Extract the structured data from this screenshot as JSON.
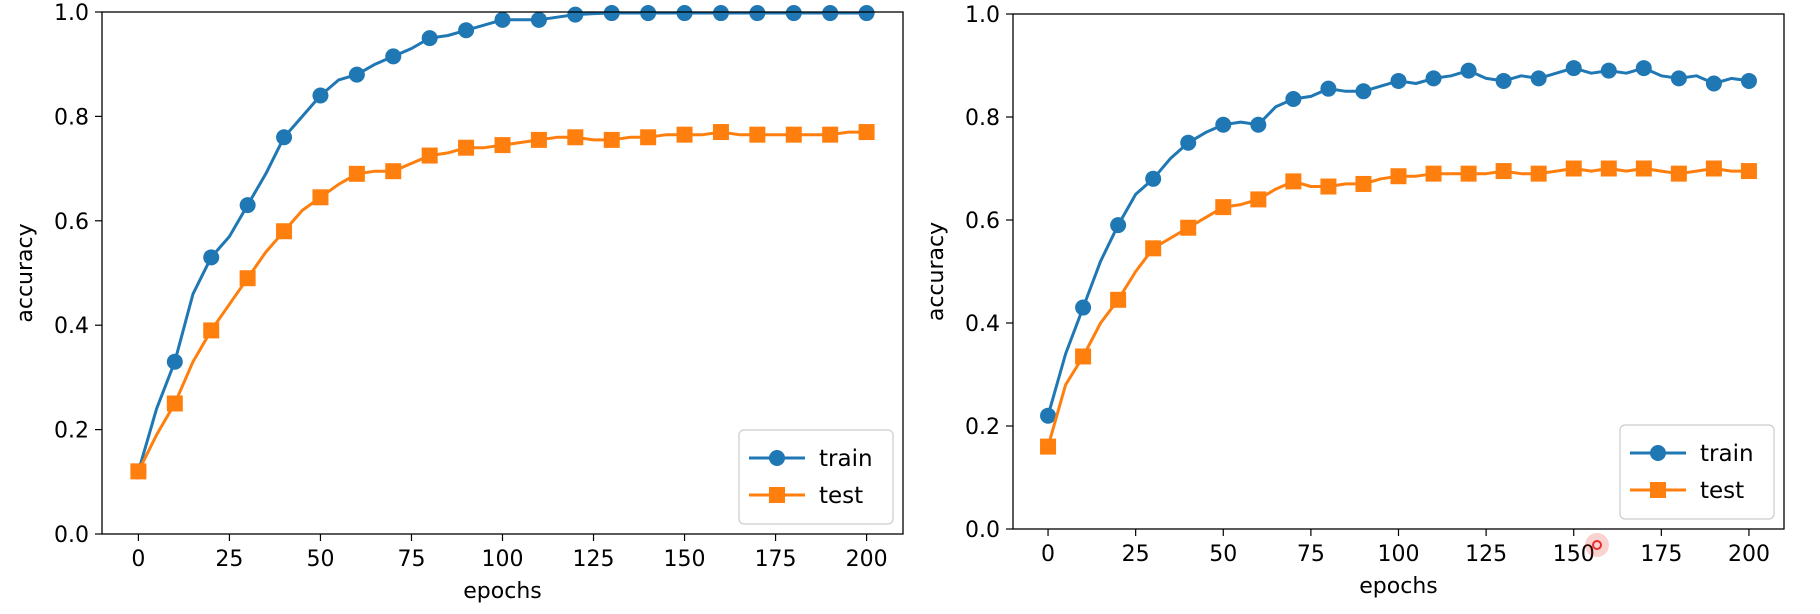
{
  "colors": {
    "train": "#1f77b4",
    "test": "#ff7f0e",
    "axis": "#000000",
    "cursor": "#e8302a"
  },
  "chart_data": [
    {
      "type": "line",
      "title": "",
      "xlabel": "epochs",
      "ylabel": "accuracy",
      "xlim": [
        -10,
        210
      ],
      "ylim": [
        0,
        1.0
      ],
      "xticks": [
        0,
        25,
        50,
        75,
        100,
        125,
        150,
        175,
        200
      ],
      "yticks": [
        0.0,
        0.2,
        0.4,
        0.6,
        0.8,
        1.0
      ],
      "xtick_labels": [
        "0",
        "25",
        "50",
        "75",
        "100",
        "125",
        "150",
        "175",
        "200"
      ],
      "ytick_labels": [
        "0.0",
        "0.2",
        "0.4",
        "0.6",
        "0.8",
        "1.0"
      ],
      "legend_position": "bottom-right",
      "series": [
        {
          "name": "train",
          "marker": "circle",
          "x": [
            0,
            5,
            10,
            15,
            20,
            25,
            30,
            35,
            40,
            45,
            50,
            55,
            60,
            65,
            70,
            75,
            80,
            85,
            90,
            95,
            100,
            105,
            110,
            115,
            120,
            125,
            130,
            135,
            140,
            145,
            150,
            155,
            160,
            165,
            170,
            175,
            180,
            185,
            190,
            195,
            200
          ],
          "values": [
            0.12,
            0.24,
            0.33,
            0.46,
            0.53,
            0.57,
            0.63,
            0.69,
            0.76,
            0.8,
            0.84,
            0.87,
            0.88,
            0.9,
            0.915,
            0.93,
            0.95,
            0.955,
            0.965,
            0.975,
            0.985,
            0.985,
            0.985,
            0.99,
            0.995,
            0.997,
            0.998,
            0.998,
            0.998,
            0.998,
            0.998,
            0.998,
            0.998,
            0.998,
            0.998,
            0.998,
            0.998,
            0.998,
            0.998,
            0.998,
            0.998
          ],
          "marker_x": [
            0,
            10,
            20,
            30,
            40,
            50,
            60,
            70,
            80,
            90,
            100,
            110,
            120,
            130,
            140,
            150,
            160,
            170,
            180,
            190,
            200
          ],
          "marker_values": [
            0.12,
            0.33,
            0.53,
            0.63,
            0.76,
            0.84,
            0.88,
            0.915,
            0.95,
            0.965,
            0.985,
            0.985,
            0.995,
            0.998,
            0.998,
            0.998,
            0.998,
            0.998,
            0.998,
            0.998,
            0.998
          ]
        },
        {
          "name": "test",
          "marker": "square",
          "x": [
            0,
            5,
            10,
            15,
            20,
            25,
            30,
            35,
            40,
            45,
            50,
            55,
            60,
            65,
            70,
            75,
            80,
            85,
            90,
            95,
            100,
            105,
            110,
            115,
            120,
            125,
            130,
            135,
            140,
            145,
            150,
            155,
            160,
            165,
            170,
            175,
            180,
            185,
            190,
            195,
            200
          ],
          "values": [
            0.12,
            0.19,
            0.25,
            0.33,
            0.39,
            0.44,
            0.49,
            0.54,
            0.58,
            0.62,
            0.645,
            0.67,
            0.69,
            0.695,
            0.695,
            0.71,
            0.725,
            0.73,
            0.74,
            0.74,
            0.745,
            0.75,
            0.755,
            0.76,
            0.76,
            0.755,
            0.755,
            0.76,
            0.76,
            0.765,
            0.765,
            0.765,
            0.77,
            0.765,
            0.765,
            0.765,
            0.765,
            0.765,
            0.765,
            0.77,
            0.77
          ],
          "marker_x": [
            0,
            10,
            20,
            30,
            40,
            50,
            60,
            70,
            80,
            90,
            100,
            110,
            120,
            130,
            140,
            150,
            160,
            170,
            180,
            190,
            200
          ],
          "marker_values": [
            0.12,
            0.25,
            0.39,
            0.49,
            0.58,
            0.645,
            0.69,
            0.695,
            0.725,
            0.74,
            0.745,
            0.755,
            0.76,
            0.755,
            0.76,
            0.765,
            0.77,
            0.765,
            0.765,
            0.765,
            0.77
          ]
        }
      ]
    },
    {
      "type": "line",
      "title": "",
      "xlabel": "epochs",
      "ylabel": "accuracy",
      "xlim": [
        -10,
        210
      ],
      "ylim": [
        0,
        1.0
      ],
      "xticks": [
        0,
        25,
        50,
        75,
        100,
        125,
        150,
        175,
        200
      ],
      "yticks": [
        0.0,
        0.2,
        0.4,
        0.6,
        0.8,
        1.0
      ],
      "xtick_labels": [
        "0",
        "25",
        "50",
        "75",
        "100",
        "125",
        "150",
        "175",
        "200"
      ],
      "ytick_labels": [
        "0.0",
        "0.2",
        "0.4",
        "0.6",
        "0.8",
        "1.0"
      ],
      "legend_position": "bottom-right",
      "series": [
        {
          "name": "train",
          "marker": "circle",
          "x": [
            0,
            5,
            10,
            15,
            20,
            25,
            30,
            35,
            40,
            45,
            50,
            55,
            60,
            65,
            70,
            75,
            80,
            85,
            90,
            95,
            100,
            105,
            110,
            115,
            120,
            125,
            130,
            135,
            140,
            145,
            150,
            155,
            160,
            165,
            170,
            175,
            180,
            185,
            190,
            195,
            200
          ],
          "values": [
            0.22,
            0.34,
            0.43,
            0.52,
            0.59,
            0.65,
            0.68,
            0.72,
            0.75,
            0.77,
            0.785,
            0.79,
            0.785,
            0.82,
            0.835,
            0.84,
            0.855,
            0.85,
            0.85,
            0.86,
            0.87,
            0.865,
            0.875,
            0.88,
            0.89,
            0.875,
            0.87,
            0.88,
            0.875,
            0.885,
            0.895,
            0.885,
            0.89,
            0.885,
            0.895,
            0.88,
            0.875,
            0.88,
            0.865,
            0.875,
            0.87
          ],
          "marker_x": [
            0,
            10,
            20,
            30,
            40,
            50,
            60,
            70,
            80,
            90,
            100,
            110,
            120,
            130,
            140,
            150,
            160,
            170,
            180,
            190,
            200
          ],
          "marker_values": [
            0.22,
            0.43,
            0.59,
            0.68,
            0.75,
            0.785,
            0.785,
            0.835,
            0.855,
            0.85,
            0.87,
            0.875,
            0.89,
            0.87,
            0.875,
            0.895,
            0.89,
            0.895,
            0.875,
            0.865,
            0.87
          ]
        },
        {
          "name": "test",
          "marker": "square",
          "x": [
            0,
            5,
            10,
            15,
            20,
            25,
            30,
            35,
            40,
            45,
            50,
            55,
            60,
            65,
            70,
            75,
            80,
            85,
            90,
            95,
            100,
            105,
            110,
            115,
            120,
            125,
            130,
            135,
            140,
            145,
            150,
            155,
            160,
            165,
            170,
            175,
            180,
            185,
            190,
            195,
            200
          ],
          "values": [
            0.16,
            0.28,
            0.335,
            0.4,
            0.445,
            0.5,
            0.545,
            0.565,
            0.585,
            0.605,
            0.625,
            0.63,
            0.64,
            0.66,
            0.675,
            0.665,
            0.665,
            0.67,
            0.67,
            0.68,
            0.685,
            0.685,
            0.69,
            0.69,
            0.69,
            0.69,
            0.695,
            0.69,
            0.69,
            0.695,
            0.7,
            0.695,
            0.7,
            0.695,
            0.7,
            0.695,
            0.69,
            0.695,
            0.7,
            0.695,
            0.695
          ],
          "marker_x": [
            0,
            10,
            20,
            30,
            40,
            50,
            60,
            70,
            80,
            90,
            100,
            110,
            120,
            130,
            140,
            150,
            160,
            170,
            180,
            190,
            200
          ],
          "marker_values": [
            0.16,
            0.335,
            0.445,
            0.545,
            0.585,
            0.625,
            0.64,
            0.675,
            0.665,
            0.67,
            0.685,
            0.69,
            0.69,
            0.695,
            0.69,
            0.7,
            0.7,
            0.7,
            0.69,
            0.7,
            0.695
          ]
        }
      ]
    }
  ]
}
